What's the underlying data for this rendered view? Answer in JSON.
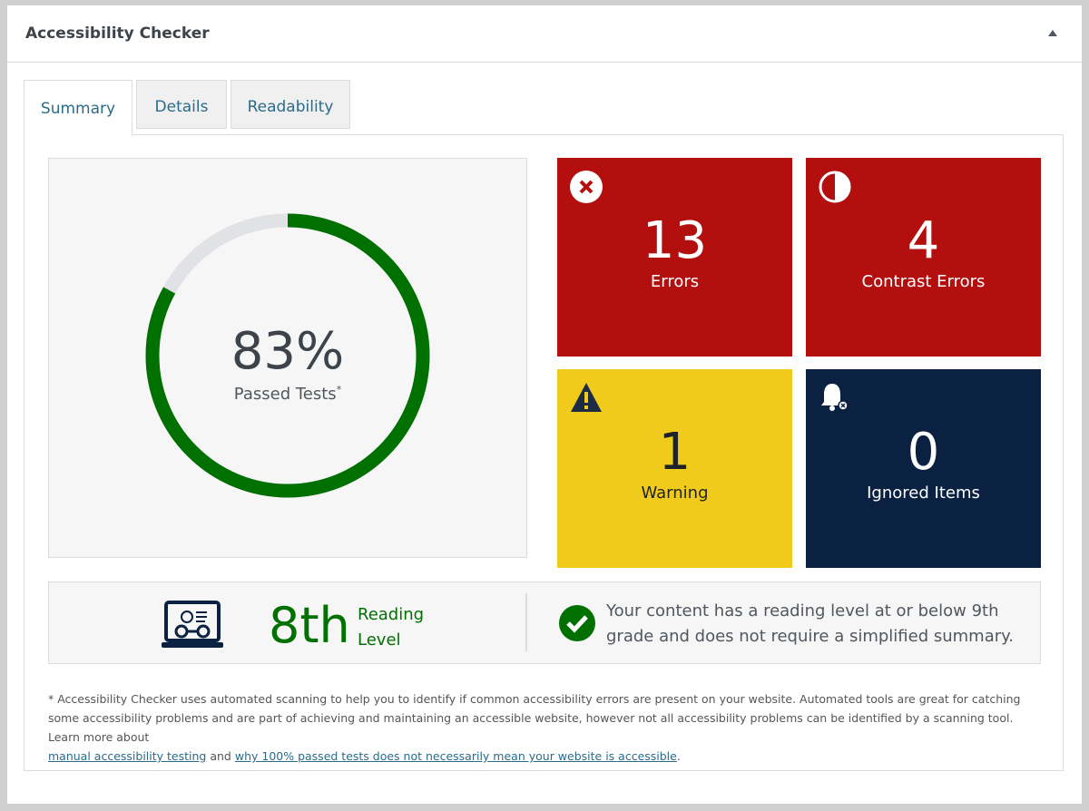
{
  "header": {
    "title": "Accessibility Checker"
  },
  "tabs": [
    "Summary",
    "Details",
    "Readability"
  ],
  "score": {
    "value": 83,
    "label": "83%",
    "caption": "Passed Tests",
    "caption_mark": "*"
  },
  "tiles": [
    {
      "count": 13,
      "label": "Errors"
    },
    {
      "count": 4,
      "label": "Contrast Errors"
    },
    {
      "count": 1,
      "label": "Warning"
    },
    {
      "count": 0,
      "label": "Ignored Items"
    }
  ],
  "reading": {
    "grade": "8th",
    "label_line1": "Reading",
    "label_line2": "Level",
    "message": "Your content has a reading level at or below 9th grade and does not require a simplified summary."
  },
  "footnote": {
    "text": "* Accessibility Checker uses automated scanning to help you to identify if common accessibility errors are present on your website. Automated tools are great for catching some accessibility problems and are part of achieving and maintaining an accessible website, however not all accessibility problems can be identified by a scanning tool. Learn more about",
    "link1": "manual accessibility testing",
    "joiner": "and",
    "link2": "why 100% passed tests does not necessarily mean your website is accessible",
    "end": "."
  }
}
